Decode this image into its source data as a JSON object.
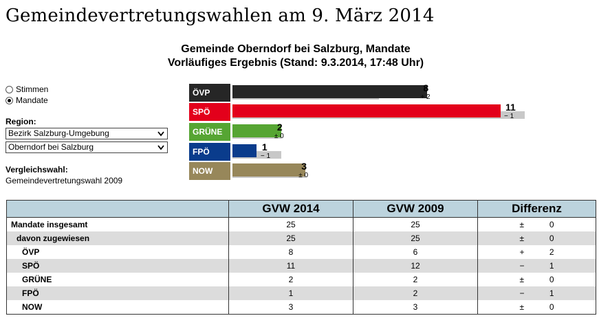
{
  "page": {
    "title": "Gemeindevertretungswahlen am 9. März 2014",
    "heading_line1": "Gemeinde Oberndorf bei Salzburg, Mandate",
    "heading_line2": "Vorläufiges Ergebnis (Stand: 9.3.2014, 17:48 Uhr)"
  },
  "controls": {
    "radio_stimmen": "Stimmen",
    "radio_mandate": "Mandate",
    "selected": "Mandate",
    "region_label": "Region:",
    "region_select_1": "Bezirk Salzburg-Umgebung",
    "region_select_2": "Oberndorf bei Salzburg",
    "comparison_label": "Vergleichswahl:",
    "comparison_value": "Gemeindevertretungswahl 2009"
  },
  "chart_data": {
    "type": "bar",
    "orientation": "horizontal",
    "categories": [
      "ÖVP",
      "SPÖ",
      "GRÜNE",
      "FPÖ",
      "NOW"
    ],
    "series": [
      {
        "name": "GVW 2014",
        "values": [
          8,
          11,
          2,
          1,
          3
        ]
      },
      {
        "name": "GVW 2009",
        "values": [
          6,
          12,
          2,
          2,
          3
        ]
      }
    ],
    "diff_labels": [
      "+ 2",
      "− 1",
      "± 0",
      "− 1",
      "± 0"
    ],
    "colors": [
      "#262626",
      "#e3001b",
      "#56a533",
      "#0a3c8c",
      "#97875a"
    ],
    "xlim": [
      0,
      12
    ]
  },
  "table": {
    "headers": [
      "",
      "GVW 2014",
      "GVW 2009",
      "Differenz"
    ],
    "rows": [
      {
        "name": "Mandate insgesamt",
        "v2014": "25",
        "v2009": "25",
        "sign": "±",
        "diff": "0"
      },
      {
        "name": "davon zugewiesen",
        "v2014": "25",
        "v2009": "25",
        "sign": "±",
        "diff": "0"
      },
      {
        "name": "ÖVP",
        "v2014": "8",
        "v2009": "6",
        "sign": "+",
        "diff": "2"
      },
      {
        "name": "SPÖ",
        "v2014": "11",
        "v2009": "12",
        "sign": "−",
        "diff": "1"
      },
      {
        "name": "GRÜNE",
        "v2014": "2",
        "v2009": "2",
        "sign": "±",
        "diff": "0"
      },
      {
        "name": "FPÖ",
        "v2014": "1",
        "v2009": "2",
        "sign": "−",
        "diff": "1"
      },
      {
        "name": "NOW",
        "v2014": "3",
        "v2009": "3",
        "sign": "±",
        "diff": "0"
      }
    ]
  }
}
